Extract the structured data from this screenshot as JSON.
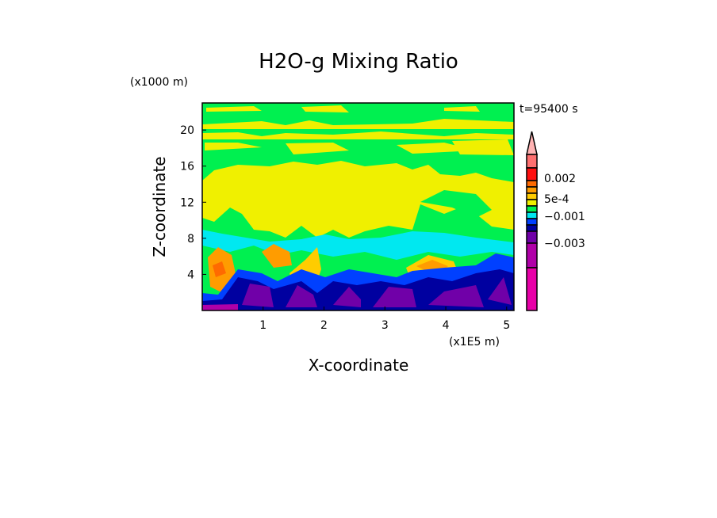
{
  "chart_data": {
    "type": "heatmap",
    "title": "H2O-g Mixing Ratio",
    "xlabel": "X-coordinate",
    "ylabel": "Z-coordinate",
    "x_unit": "(x1E5 m)",
    "y_unit": "(x1000 m)",
    "time_label": "t=95400 s",
    "xlim": [
      0,
      5.12
    ],
    "ylim": [
      0,
      23
    ],
    "x_ticks": [
      1,
      2,
      3,
      4,
      5
    ],
    "y_ticks": [
      4,
      8,
      12,
      16,
      20
    ],
    "colorbar": {
      "levels_colors": [
        "#ffb3b3",
        "#ff7070",
        "#ff1010",
        "#ff6a00",
        "#ff9c00",
        "#ffcc00",
        "#f0f000",
        "#00f050",
        "#00e8f0",
        "#0040ff",
        "#0000a0",
        "#7000a8",
        "#b000a8",
        "#e800a8"
      ],
      "labels": [
        {
          "text": "0.002",
          "value": 0.002
        },
        {
          "text": "5e-4",
          "value": 0.0005
        },
        {
          "text": "−0.001",
          "value": -0.001
        },
        {
          "text": "−0.003",
          "value": -0.003
        }
      ],
      "extend": "max"
    }
  }
}
